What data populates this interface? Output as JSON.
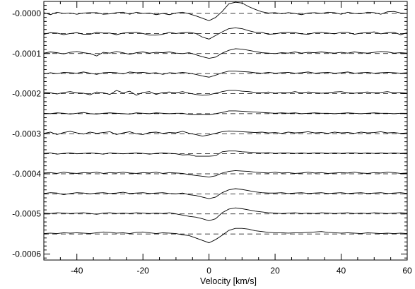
{
  "chart_data": {
    "type": "line",
    "title": "",
    "xlabel": "Velocity [km/s]",
    "ylabel": "",
    "xlim": [
      -50,
      60
    ],
    "ylim": [
      -0.000615,
      3e-05
    ],
    "x_ticks": [
      -40,
      -20,
      0,
      20,
      40,
      60
    ],
    "x_tick_labels": [
      "-40",
      "-20",
      "0",
      "20",
      "40",
      "60"
    ],
    "y_ticks": [
      0,
      -0.0001,
      -0.0002,
      -0.0003,
      -0.0004,
      -0.0005,
      -0.0006
    ],
    "y_tick_labels": [
      "-0.0000",
      "-0.0001",
      "-0.0002",
      "-0.0003",
      "-0.0004",
      "-0.0005",
      "-0.0006"
    ],
    "grid": false,
    "legend": "none",
    "dashed_baselines": [
      0,
      -5e-05,
      -0.0001,
      -0.00015,
      -0.0002,
      -0.00025,
      -0.0003,
      -0.00035,
      -0.0004,
      -0.00045,
      -0.0005,
      -0.00055
    ],
    "x": [
      -50,
      -48,
      -46,
      -44,
      -42,
      -40,
      -38,
      -36,
      -34,
      -32,
      -30,
      -28,
      -26,
      -24,
      -22,
      -20,
      -18,
      -16,
      -14,
      -12,
      -10,
      -8,
      -6,
      -4,
      -2,
      0,
      2,
      4,
      6,
      8,
      10,
      12,
      14,
      16,
      18,
      20,
      22,
      24,
      26,
      28,
      30,
      32,
      34,
      36,
      38,
      40,
      42,
      44,
      46,
      48,
      50,
      52,
      54,
      56,
      58,
      60
    ],
    "series": [
      {
        "offset": 0,
        "values": [
          2e-06,
          -3e-06,
          3e-06,
          0,
          1e-06,
          -2e-06,
          1e-06,
          2e-06,
          2e-06,
          -2e-06,
          -1e-06,
          2e-06,
          3e-06,
          -2e-06,
          3e-06,
          0,
          1e-06,
          -3e-06,
          0,
          -3e-06,
          1e-06,
          3e-06,
          -1e-06,
          -6e-06,
          -1.2e-05,
          -1.8e-05,
          -1e-05,
          5e-06,
          2.4e-05,
          2.8e-05,
          2.6e-05,
          1.7e-05,
          1e-05,
          4e-06,
          1e-06,
          2e-06,
          -1e-06,
          2e-06,
          0,
          -3e-06,
          1e-06,
          2e-06,
          0,
          3e-06,
          2e-06,
          -2e-06,
          3e-06,
          0,
          -1e-06,
          3e-06,
          2e-06,
          -2e-06,
          4e-06,
          5e-06,
          1e-06,
          0
        ]
      },
      {
        "offset": -5e-05,
        "values": [
          -2e-06,
          2e-06,
          1e-06,
          -3e-06,
          0,
          2e-06,
          -2e-06,
          -2e-06,
          3e-06,
          1e-06,
          1e-06,
          -3e-06,
          1e-06,
          2e-06,
          3e-06,
          0,
          -4e-06,
          -4e-06,
          -2e-06,
          3e-06,
          0,
          2e-06,
          3e-06,
          0,
          -9e-06,
          -1.4e-05,
          -5e-06,
          4e-06,
          1.2e-05,
          1.4e-05,
          1.2e-05,
          7e-06,
          3e-06,
          3e-06,
          -2e-06,
          -1e-06,
          2e-06,
          3e-06,
          2e-06,
          -1e-06,
          -2e-06,
          2e-06,
          3e-06,
          1e-06,
          -1e-06,
          3e-06,
          3e-06,
          -2e-06,
          1e-06,
          2e-06,
          4e-06,
          -1e-06,
          2e-06,
          3e-06,
          -3e-06,
          2e-06
        ]
      },
      {
        "offset": -0.0001,
        "values": [
          1e-06,
          4e-06,
          2e-06,
          -1e-06,
          3e-06,
          5e-06,
          2e-06,
          0,
          -6e-06,
          3e-06,
          1e-06,
          5e-06,
          2e-06,
          -2e-06,
          2e-06,
          4e-06,
          1e-06,
          3e-06,
          2e-06,
          4e-06,
          1e-06,
          0,
          2e-06,
          -3e-06,
          -8e-06,
          -1.2e-05,
          -9e-06,
          1e-06,
          8e-06,
          1.2e-05,
          1.1e-05,
          8e-06,
          5e-06,
          2e-06,
          1e-06,
          0,
          2e-06,
          1e-06,
          4e-06,
          1e-06,
          3e-06,
          2e-06,
          4e-06,
          2e-06,
          1e-06,
          3e-06,
          1e-06,
          4e-06,
          2e-06,
          1e-06,
          3e-06,
          5e-06,
          4e-06,
          1e-06,
          2e-06,
          1e-06
        ]
      },
      {
        "offset": -0.00015,
        "values": [
          -1e-06,
          2e-06,
          0,
          3e-06,
          2e-06,
          1e-06,
          4e-06,
          1e-06,
          -2e-06,
          2e-06,
          3e-06,
          2e-06,
          -1e-06,
          4e-06,
          2e-06,
          3e-06,
          1e-06,
          2e-06,
          -2e-06,
          2e-06,
          1e-06,
          3e-06,
          1e-06,
          -2e-06,
          -6e-06,
          -9e-06,
          -4e-06,
          2e-06,
          6e-06,
          6e-06,
          5e-06,
          4e-06,
          2e-06,
          1e-06,
          3e-06,
          1e-06,
          2e-06,
          3e-06,
          1e-06,
          2e-06,
          4e-06,
          1e-06,
          2e-06,
          3e-06,
          1e-06,
          2e-06,
          4e-06,
          1e-06,
          2e-06,
          3e-06,
          1e-06,
          2e-06,
          3e-06,
          2e-06,
          1e-06,
          2e-06
        ]
      },
      {
        "offset": -0.0002,
        "values": [
          4e-06,
          2e-06,
          -1e-06,
          3e-06,
          5e-06,
          2e-06,
          1e-06,
          -3e-06,
          4e-06,
          2e-06,
          -2e-06,
          8e-06,
          2e-06,
          6e-06,
          -4e-06,
          3e-06,
          5e-06,
          -2e-06,
          3e-06,
          4e-06,
          2e-06,
          5e-06,
          1e-06,
          -2e-06,
          -4e-06,
          -3e-06,
          1e-06,
          5e-06,
          8e-06,
          8e-06,
          6e-06,
          5e-06,
          3e-06,
          2e-06,
          4e-06,
          1e-06,
          3e-06,
          2e-06,
          5e-06,
          2e-06,
          4e-06,
          3e-06,
          1e-06,
          2e-06,
          4e-06,
          5e-06,
          2e-06,
          1e-06,
          3e-06,
          4e-06,
          2e-06,
          3e-06,
          5e-06,
          2e-06,
          3e-06,
          1e-06
        ]
      },
      {
        "offset": -0.00025,
        "values": [
          1e-06,
          0,
          2e-06,
          1e-06,
          -1e-06,
          1e-06,
          3e-06,
          0,
          -1e-06,
          1e-06,
          2e-06,
          1e-06,
          0,
          -1e-06,
          2e-06,
          1e-06,
          0,
          2e-06,
          1e-06,
          0,
          1e-06,
          1e-06,
          -2e-06,
          -3e-06,
          -2e-06,
          -3e-06,
          0,
          3e-06,
          7e-06,
          7e-06,
          6e-06,
          5e-06,
          4e-06,
          3e-06,
          2e-06,
          1e-06,
          2e-06,
          1e-06,
          2e-06,
          0,
          1e-06,
          2e-06,
          1e-06,
          1e-06,
          0,
          1e-06,
          2e-06,
          1e-06,
          0,
          1e-06,
          2e-06,
          1e-06,
          1e-06,
          0,
          1e-06,
          1e-06
        ]
      },
      {
        "offset": -0.0003,
        "values": [
          1e-06,
          4e-06,
          -2e-06,
          3e-06,
          6e-06,
          2e-06,
          -1e-06,
          4e-06,
          1e-06,
          3e-06,
          5e-06,
          -2e-06,
          2e-06,
          5e-06,
          0,
          -2e-06,
          3e-06,
          4e-06,
          1e-06,
          3e-06,
          2e-06,
          6e-06,
          1e-06,
          -2e-06,
          -6e-06,
          -3e-06,
          1e-06,
          5e-06,
          7e-06,
          6e-06,
          5e-06,
          4e-06,
          3e-06,
          4e-06,
          2e-06,
          3e-06,
          1e-06,
          4e-06,
          2e-06,
          3e-06,
          5e-06,
          2e-06,
          3e-06,
          1e-06,
          4e-06,
          2e-06,
          3e-06,
          1e-06,
          4e-06,
          2e-06,
          3e-06,
          5e-06,
          2e-06,
          3e-06,
          1e-06,
          2e-06
        ]
      },
      {
        "offset": -0.00035,
        "values": [
          1e-06,
          2e-06,
          -1e-06,
          1e-06,
          2e-06,
          0,
          1e-06,
          2e-06,
          1e-06,
          -1e-06,
          2e-06,
          1e-06,
          0,
          1e-06,
          2e-06,
          1e-06,
          -1e-06,
          1e-06,
          2e-06,
          1e-06,
          0,
          -3e-06,
          -2e-06,
          -6e-06,
          -6e-06,
          -6e-06,
          -5e-06,
          5e-06,
          7e-06,
          7e-06,
          5e-06,
          4e-06,
          3e-06,
          2e-06,
          3e-06,
          1e-06,
          2e-06,
          2e-06,
          1e-06,
          2e-06,
          1e-06,
          2e-06,
          2e-06,
          1e-06,
          2e-06,
          1e-06,
          2e-06,
          2e-06,
          1e-06,
          2e-06,
          1e-06,
          2e-06,
          1e-06,
          2e-06,
          1e-06,
          2e-06
        ]
      },
      {
        "offset": -0.0004,
        "values": [
          2e-06,
          3e-06,
          1e-06,
          4e-06,
          2e-06,
          1e-06,
          3e-06,
          2e-06,
          4e-06,
          1e-06,
          3e-06,
          2e-06,
          4e-06,
          2e-06,
          1e-06,
          3e-06,
          2e-06,
          4e-06,
          1e-06,
          3e-06,
          2e-06,
          1e-06,
          -2e-06,
          -4e-06,
          -6e-06,
          -8e-06,
          -5e-06,
          2e-06,
          6e-06,
          8e-06,
          7e-06,
          6e-06,
          4e-06,
          3e-06,
          2e-06,
          4e-06,
          2e-06,
          3e-06,
          1e-06,
          2e-06,
          4e-06,
          2e-06,
          3e-06,
          1e-06,
          2e-06,
          3e-06,
          2e-06,
          4e-06,
          2e-06,
          1e-06,
          3e-06,
          2e-06,
          4e-06,
          3e-06,
          1e-06,
          2e-06
        ]
      },
      {
        "offset": -0.00045,
        "values": [
          1e-06,
          3e-06,
          2e-06,
          -2e-06,
          1e-06,
          3e-06,
          2e-06,
          0,
          2e-06,
          3e-06,
          1e-06,
          2e-06,
          4e-06,
          1e-06,
          2e-06,
          3e-06,
          1e-06,
          2e-06,
          3e-06,
          1e-06,
          0,
          2e-06,
          -2e-06,
          -4e-06,
          -8e-06,
          -1.2e-05,
          -8e-06,
          3e-06,
          1e-05,
          1.3e-05,
          1.1e-05,
          8e-06,
          5e-06,
          3e-06,
          2e-06,
          2e-06,
          3e-06,
          1e-06,
          2e-06,
          3e-06,
          1e-06,
          2e-06,
          3e-06,
          1e-06,
          2e-06,
          3e-06,
          1e-06,
          2e-06,
          3e-06,
          1e-06,
          2e-06,
          3e-06,
          1e-06,
          2e-06,
          3e-06,
          1e-06
        ]
      },
      {
        "offset": -0.0005,
        "values": [
          2e-06,
          1e-06,
          3e-06,
          2e-06,
          1e-06,
          2e-06,
          3e-06,
          1e-06,
          -1e-06,
          2e-06,
          3e-06,
          1e-06,
          2e-06,
          1e-06,
          3e-06,
          2e-06,
          1e-06,
          2e-06,
          1e-06,
          3e-06,
          0,
          -3e-06,
          -6e-06,
          -8e-06,
          -1.2e-05,
          -1.7e-05,
          -1.2e-05,
          3e-06,
          1.2e-05,
          1.5e-05,
          1.3e-05,
          1e-05,
          7e-06,
          5e-06,
          3e-06,
          2e-06,
          1e-06,
          2e-06,
          3e-06,
          1e-06,
          2e-06,
          1e-06,
          3e-06,
          2e-06,
          1e-06,
          2e-06,
          3e-06,
          1e-06,
          2e-06,
          1e-06,
          3e-06,
          2e-06,
          1e-06,
          2e-06,
          3e-06,
          2e-06
        ]
      },
      {
        "offset": -0.00055,
        "values": [
          1e-06,
          2e-06,
          1e-06,
          3e-06,
          2e-06,
          3e-06,
          2e-06,
          1e-06,
          3e-06,
          5e-06,
          4e-06,
          2e-06,
          3e-06,
          1e-06,
          4e-06,
          5e-06,
          3e-06,
          1e-06,
          3e-06,
          2e-06,
          1e-06,
          -2e-06,
          -4e-06,
          -1e-05,
          -1.6e-05,
          -2.2e-05,
          -1.4e-05,
          -3e-06,
          9e-06,
          1.4e-05,
          1.4e-05,
          1.2e-05,
          8e-06,
          6e-06,
          4e-06,
          3e-06,
          3e-06,
          2e-06,
          3e-06,
          3e-06,
          4e-06,
          5e-06,
          6e-06,
          4e-06,
          3e-06,
          2e-06,
          3e-06,
          2e-06,
          1e-06,
          3e-06,
          2e-06,
          1e-06,
          2e-06,
          1e-06,
          2e-06,
          1e-06
        ]
      }
    ]
  }
}
